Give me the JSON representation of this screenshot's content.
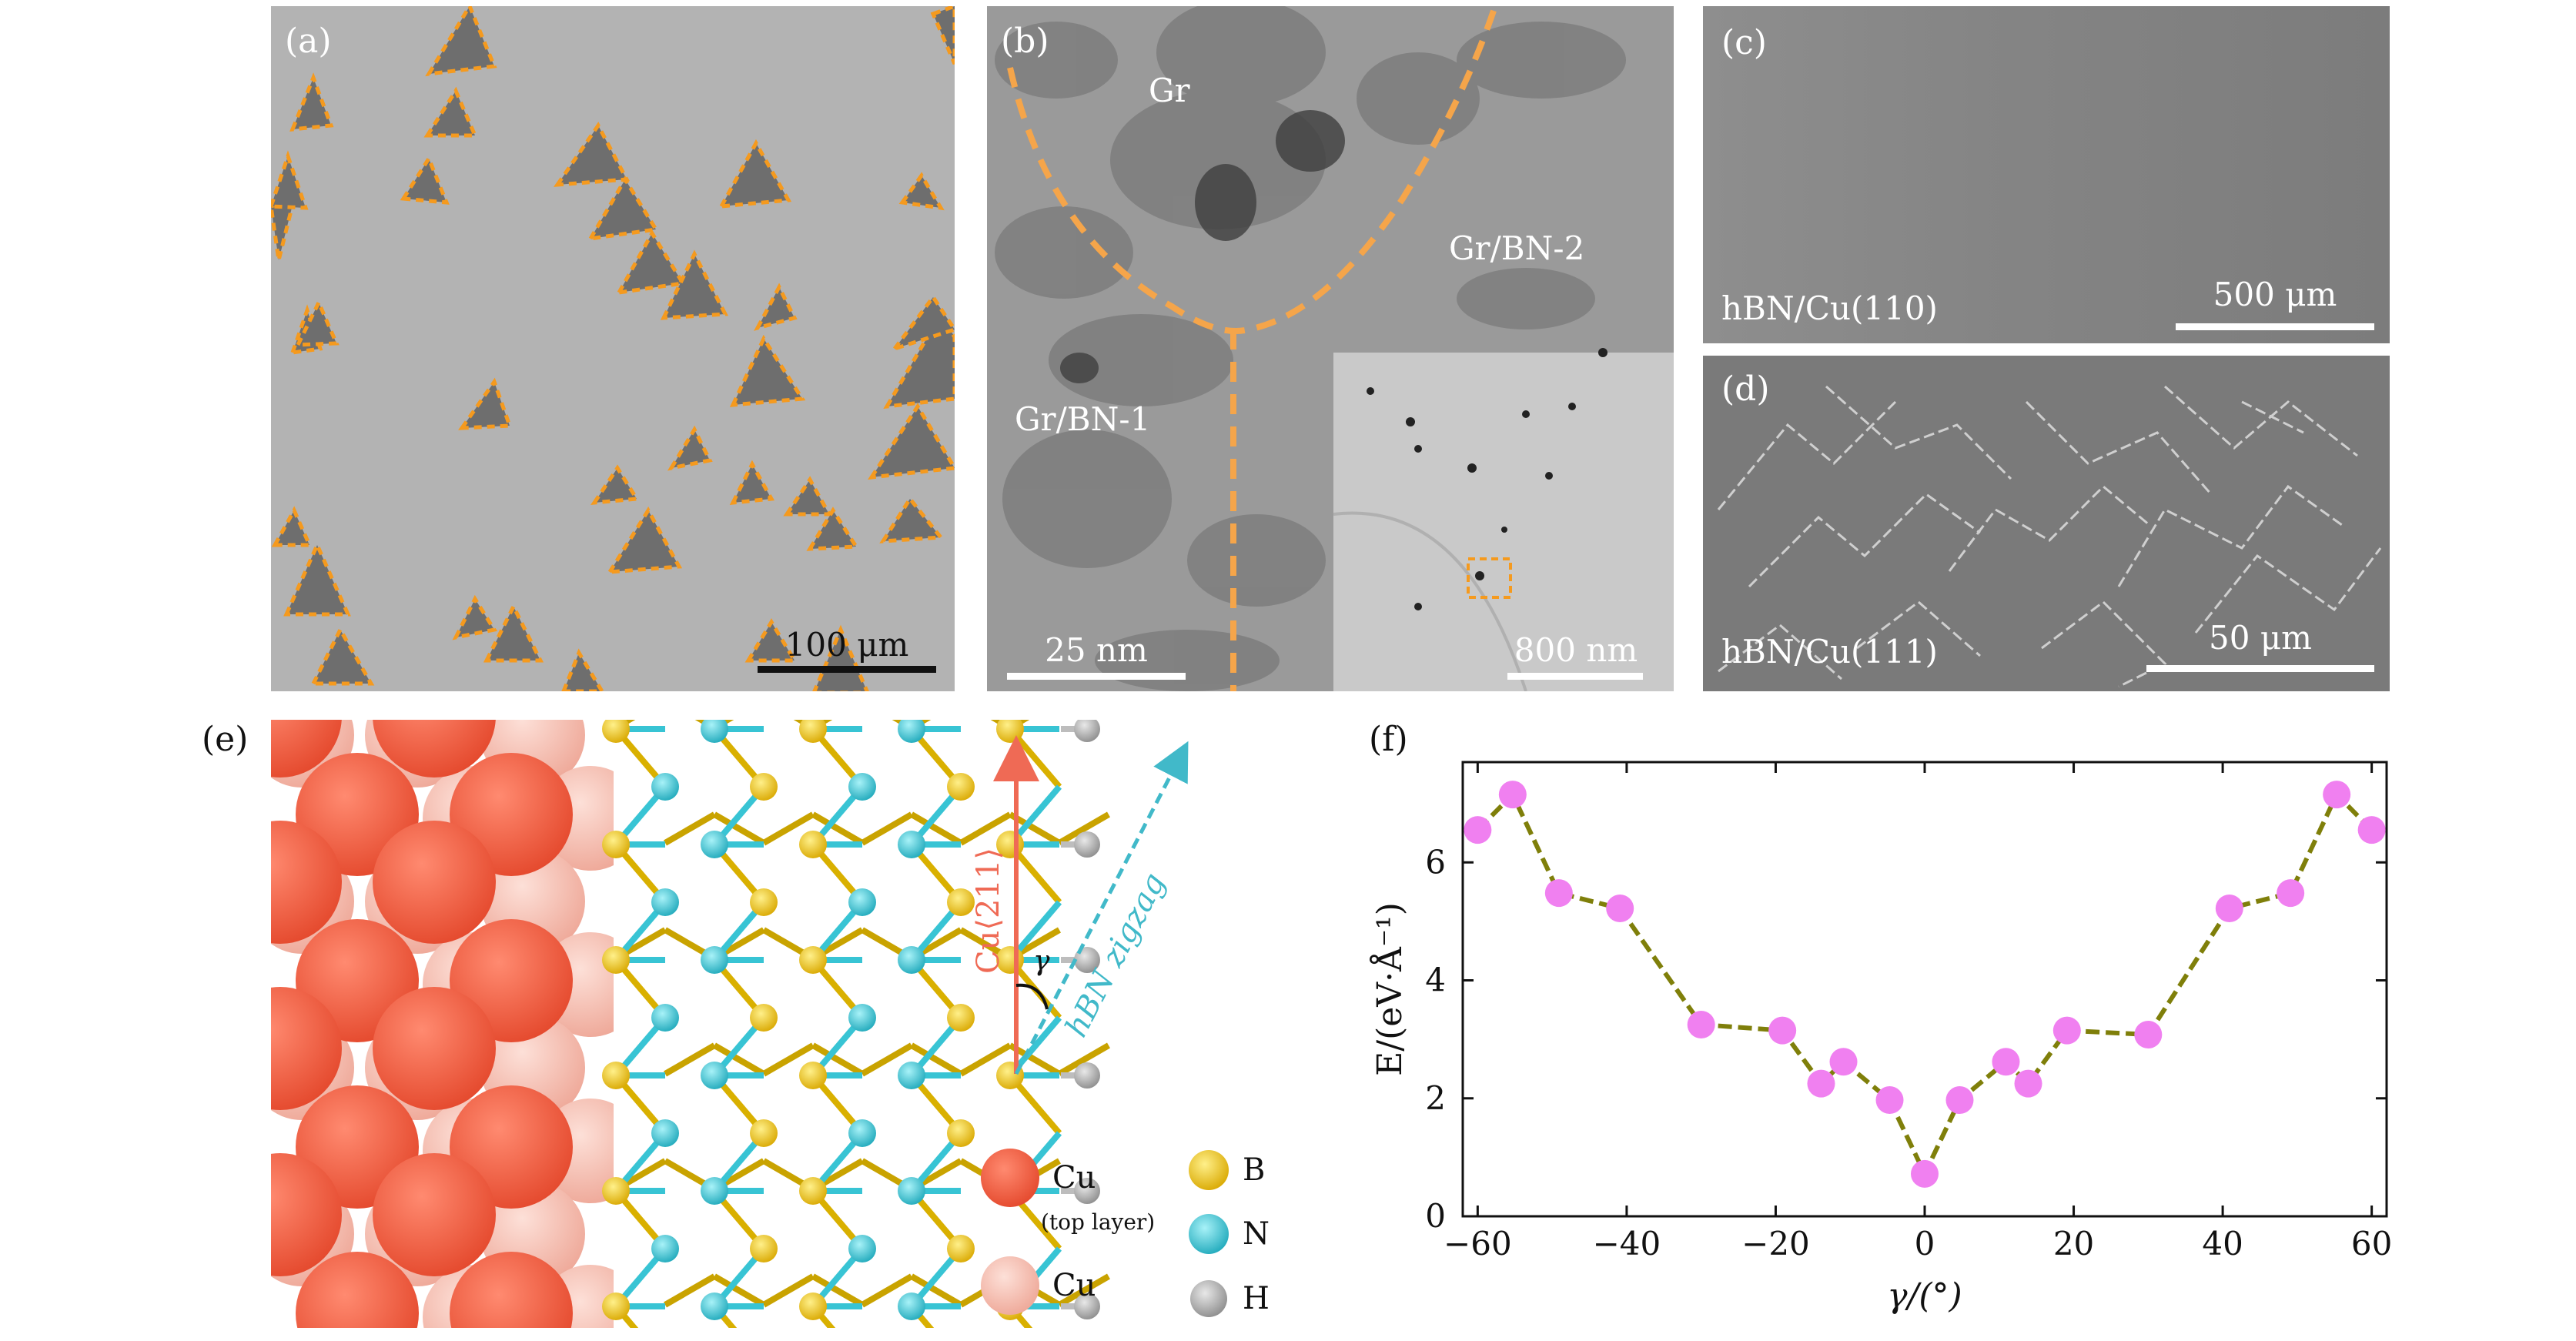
{
  "panels": {
    "a": {
      "label": "(a)",
      "scale": "100 μm"
    },
    "b": {
      "label": "(b)",
      "regions": [
        "Gr",
        "Gr/BN-2",
        "Gr/BN-1"
      ],
      "scale": "25 nm",
      "inset_scale": "800 nm"
    },
    "c": {
      "label": "(c)",
      "caption": "hBN/Cu(110)",
      "scale": "500 μm"
    },
    "d": {
      "label": "(d)",
      "caption": "hBN/Cu(111)",
      "scale": "50 μm"
    },
    "e": {
      "label": "(e)",
      "arrow_cu": "Cu⟨211⟩",
      "arrow_hbn": "hBN zigzag",
      "angle": "γ",
      "legend": {
        "cu_top": "Cu",
        "cu_top_note": "(top layer)",
        "cu": "Cu",
        "b": "B",
        "n": "N",
        "h": "H"
      },
      "colors": {
        "cu_top": "#ef5a3f",
        "cu": "#f4b6a8",
        "b": "#f0c419",
        "n": "#38c4d4",
        "h": "#a9a9a9"
      }
    },
    "f": {
      "label": "(f)"
    }
  },
  "chart_data": {
    "type": "line",
    "xlabel": "γ/(°)",
    "ylabel": "E/(eV·Å⁻¹)",
    "xlim": [
      -62,
      62
    ],
    "ylim": [
      0,
      7.7
    ],
    "xticks": [
      -60,
      -40,
      -20,
      0,
      20,
      40,
      60
    ],
    "yticks": [
      0,
      2,
      4,
      6
    ],
    "xtick_labels": [
      "−60",
      "−40",
      "−20",
      "0",
      "20",
      "40",
      "60"
    ],
    "ytick_labels": [
      "0",
      "2",
      "4",
      "6"
    ],
    "x": [
      -60,
      -55.3,
      -49.1,
      -40.9,
      -30,
      -19.1,
      -13.9,
      -10.9,
      -4.7,
      0,
      4.7,
      10.9,
      13.9,
      19.1,
      30,
      40.9,
      49.1,
      55.3,
      60
    ],
    "y": [
      6.55,
      7.15,
      5.48,
      5.22,
      3.25,
      3.15,
      2.25,
      2.62,
      1.97,
      0.72,
      1.97,
      2.62,
      2.25,
      3.15,
      3.08,
      5.22,
      5.48,
      7.15,
      6.55
    ],
    "line_color": "#7f7f0a",
    "marker_color": "#f080f0",
    "grid": false
  }
}
